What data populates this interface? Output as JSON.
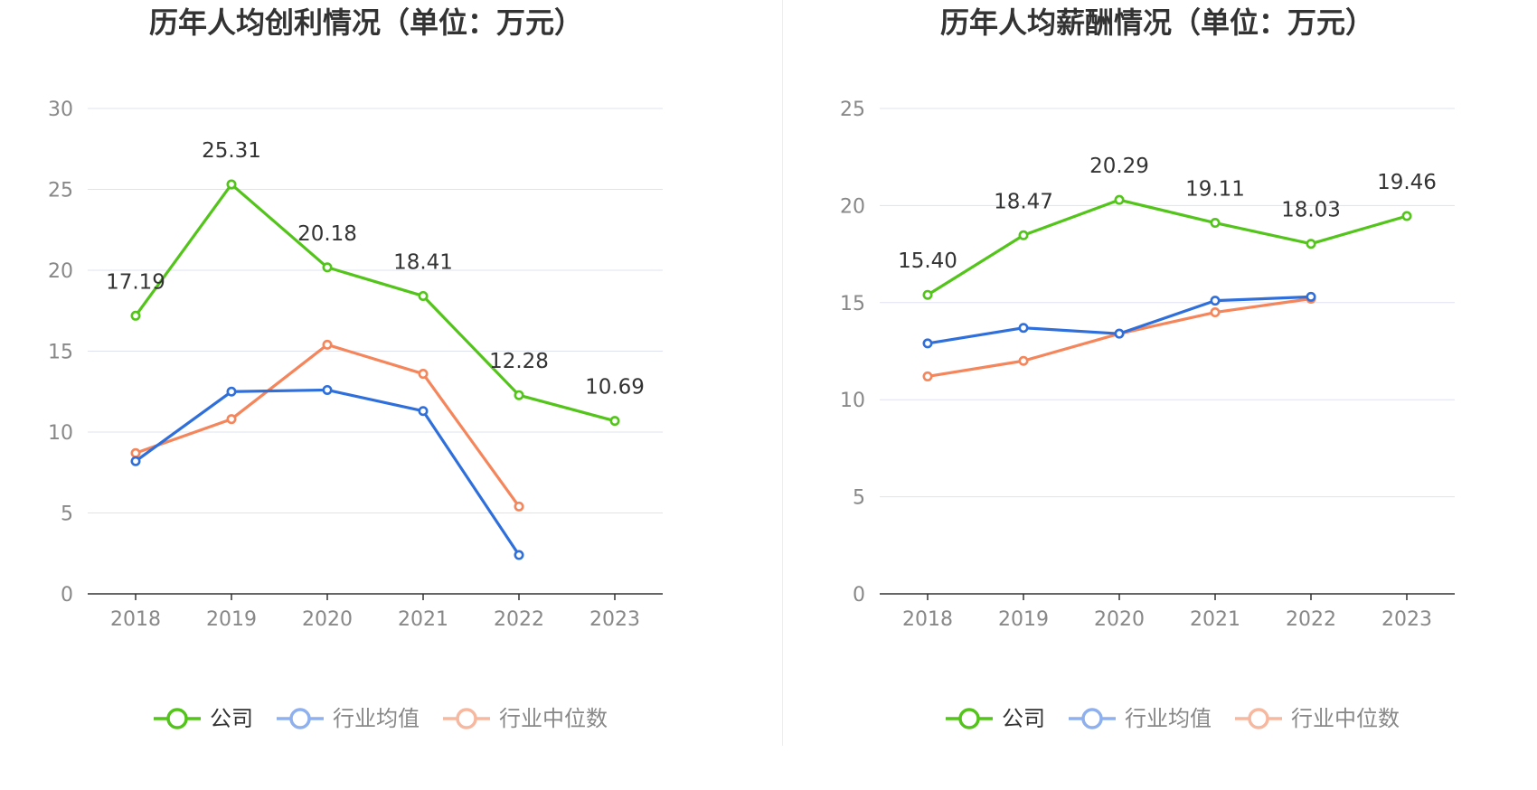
{
  "colors": {
    "company": "#52c41a",
    "avg": "#2f6fdb",
    "median": "#f5855b",
    "grid": "#dfe3f0",
    "axis": "#333333"
  },
  "legend": [
    {
      "name": "公司",
      "color": "#52c41a",
      "text_color": "#333333"
    },
    {
      "name": "行业均值",
      "color": "#8fb0ee",
      "text_color": "#888888"
    },
    {
      "name": "行业中位数",
      "color": "#f7b8a0",
      "text_color": "#888888"
    }
  ],
  "chart_data": [
    {
      "type": "line",
      "title": "历年人均创利情况（单位：万元）",
      "categories": [
        "2018",
        "2019",
        "2020",
        "2021",
        "2022",
        "2023"
      ],
      "ylim": [
        0,
        30
      ],
      "yticks": [
        0,
        5,
        10,
        15,
        20,
        25,
        30
      ],
      "grid": true,
      "legend_position": "bottom",
      "series": [
        {
          "name": "公司",
          "color": "#52c41a",
          "values": [
            17.19,
            25.31,
            20.18,
            18.41,
            12.28,
            10.69
          ],
          "labels": [
            "17.19",
            "25.31",
            "20.18",
            "18.41",
            "12.28",
            "10.69"
          ]
        },
        {
          "name": "行业均值",
          "color": "#2f6fdb",
          "values": [
            8.2,
            12.5,
            12.6,
            11.3,
            2.4,
            null
          ]
        },
        {
          "name": "行业中位数",
          "color": "#f5855b",
          "values": [
            8.7,
            10.8,
            15.4,
            13.6,
            5.4,
            null
          ]
        }
      ]
    },
    {
      "type": "line",
      "title": "历年人均薪酬情况（单位：万元）",
      "categories": [
        "2018",
        "2019",
        "2020",
        "2021",
        "2022",
        "2023"
      ],
      "ylim": [
        0,
        25
      ],
      "yticks": [
        0,
        5,
        10,
        15,
        20,
        25
      ],
      "grid": true,
      "legend_position": "bottom",
      "series": [
        {
          "name": "公司",
          "color": "#52c41a",
          "values": [
            15.4,
            18.47,
            20.29,
            19.11,
            18.03,
            19.46
          ],
          "labels": [
            "15.40",
            "18.47",
            "20.29",
            "19.11",
            "18.03",
            "19.46"
          ]
        },
        {
          "name": "行业均值",
          "color": "#2f6fdb",
          "values": [
            12.9,
            13.7,
            13.4,
            15.1,
            15.3,
            null
          ]
        },
        {
          "name": "行业中位数",
          "color": "#f5855b",
          "values": [
            11.2,
            12.0,
            13.4,
            14.5,
            15.2,
            null
          ]
        }
      ]
    }
  ]
}
